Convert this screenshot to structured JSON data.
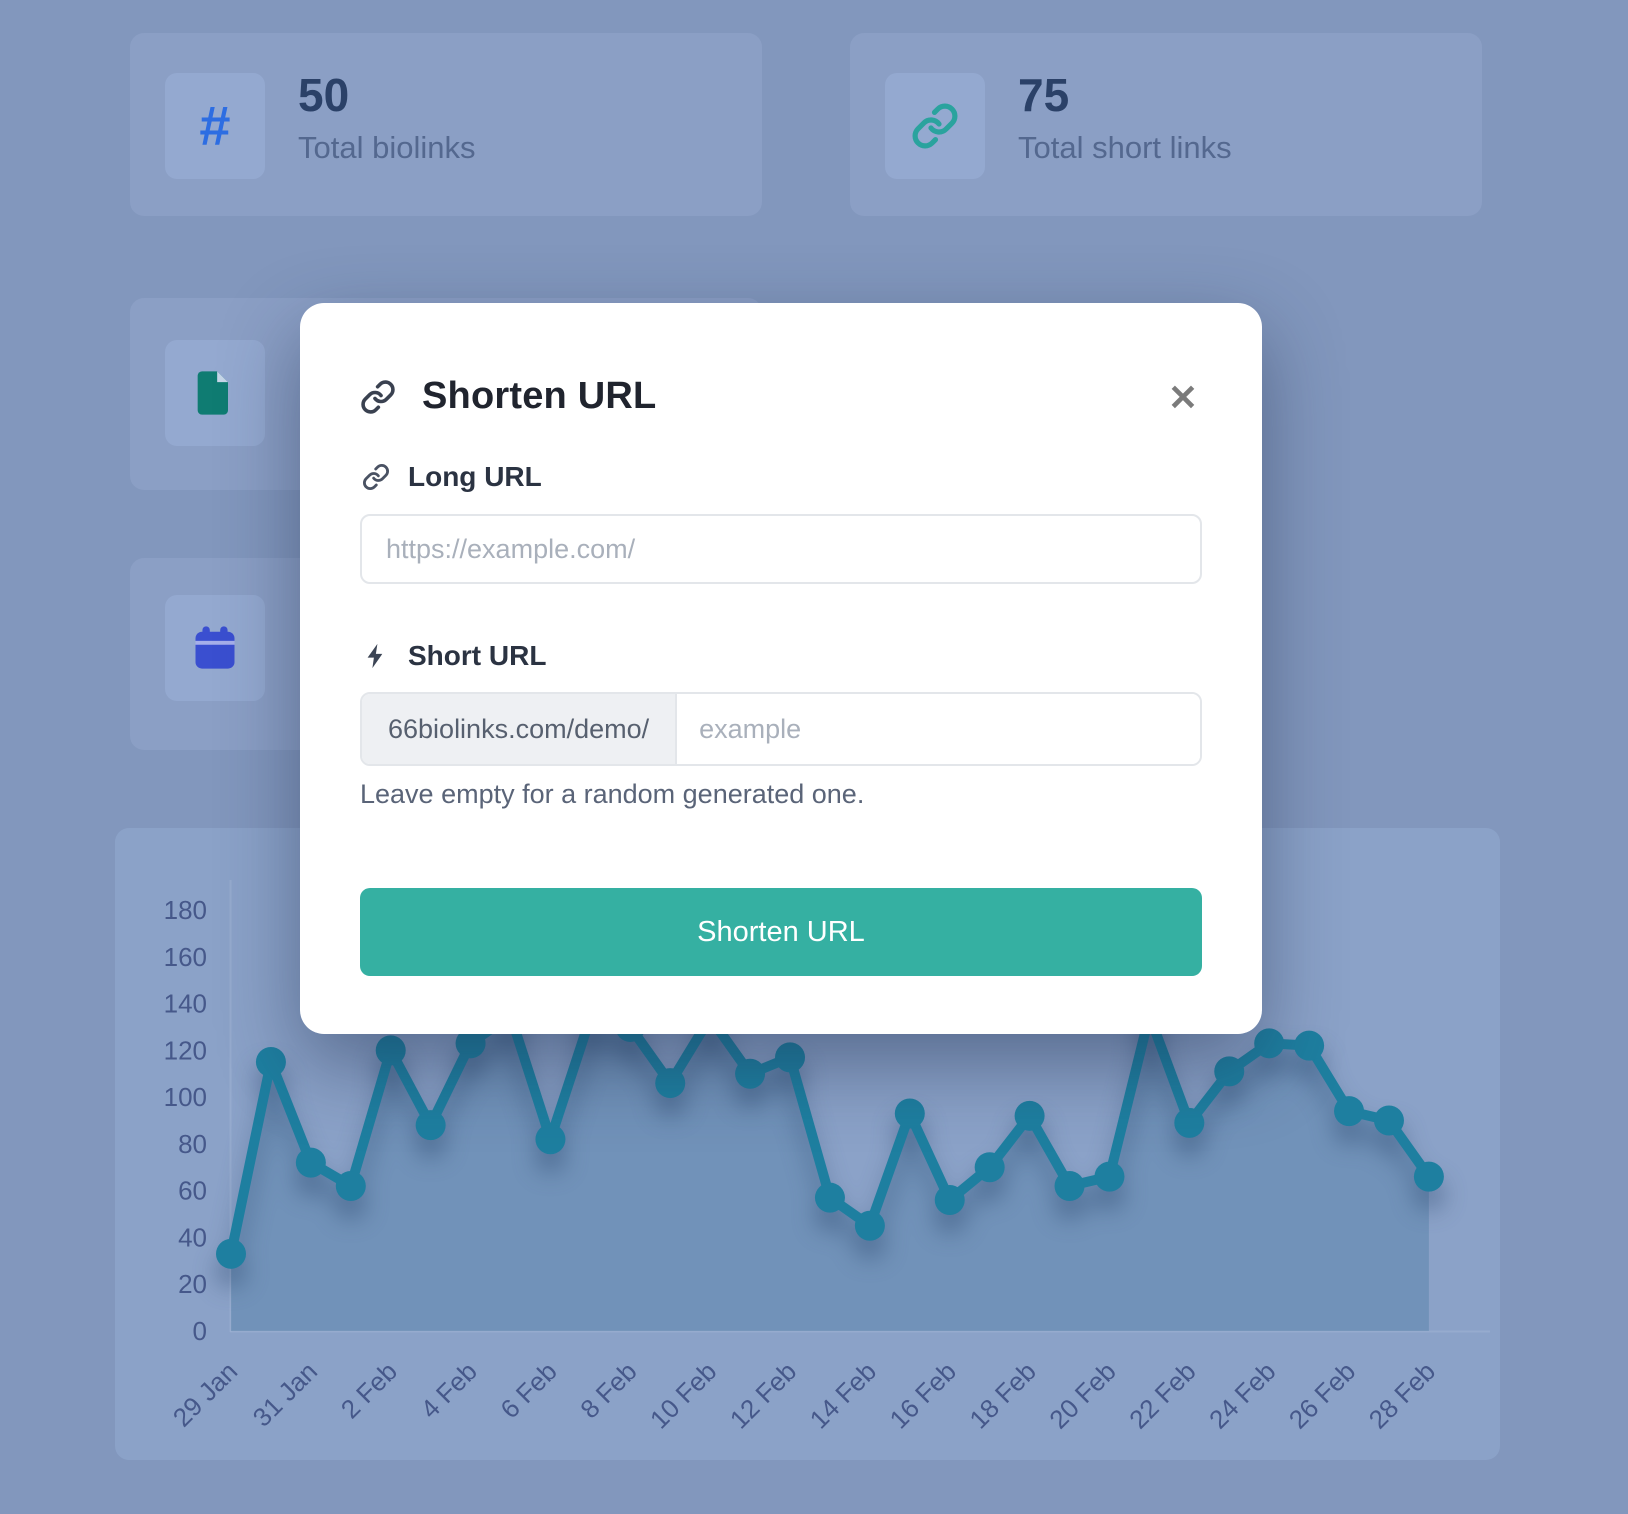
{
  "page": {
    "background_color": "#8297bd",
    "panel_color": "#8b9fc5",
    "tile_color": "#94a9d0"
  },
  "stats": {
    "biolinks": {
      "glyph": "#",
      "icon_color": "#2d6de2",
      "value": "50",
      "label": "Total biolinks"
    },
    "short_links": {
      "icon_color": "#2aa39e",
      "value": "75",
      "label": "Total short links"
    },
    "documents": {
      "icon_color": "#0f7c72",
      "fold_color": "#c6d6e8"
    },
    "calendar": {
      "icon_color": "#3a4fd0"
    }
  },
  "modal": {
    "title": "Shorten URL",
    "close_glyph": "✕",
    "accent_color": "#35b0a2",
    "long_url": {
      "label": "Long URL",
      "placeholder": "https://example.com/"
    },
    "short_url": {
      "label": "Short URL",
      "prefix": "66biolinks.com/demo/",
      "placeholder": "example"
    },
    "helper": "Leave empty for a random generated one.",
    "submit_label": "Shorten URL"
  },
  "chart_data": {
    "type": "line",
    "title": "",
    "xlabel": "",
    "ylabel": "",
    "ylim": [
      0,
      180
    ],
    "y_tick_step": 20,
    "x_tick_step": 2,
    "grid": false,
    "legend": false,
    "line_color": "#1e7fa0",
    "area_color": "rgba(23,92,130,0.22)",
    "categories": [
      "29 Jan",
      "30 Jan",
      "31 Jan",
      "1 Feb",
      "2 Feb",
      "3 Feb",
      "4 Feb",
      "5 Feb",
      "6 Feb",
      "7 Feb",
      "8 Feb",
      "9 Feb",
      "10 Feb",
      "11 Feb",
      "12 Feb",
      "13 Feb",
      "14 Feb",
      "15 Feb",
      "16 Feb",
      "17 Feb",
      "18 Feb",
      "19 Feb",
      "20 Feb",
      "21 Feb",
      "22 Feb",
      "23 Feb",
      "24 Feb",
      "25 Feb",
      "26 Feb",
      "27 Feb",
      "28 Feb"
    ],
    "values": [
      33,
      115,
      72,
      62,
      120,
      88,
      123,
      135,
      82,
      134,
      130,
      106,
      134,
      110,
      117,
      57,
      45,
      93,
      56,
      70,
      92,
      62,
      66,
      135,
      89,
      111,
      123,
      122,
      94,
      90,
      66
    ]
  }
}
